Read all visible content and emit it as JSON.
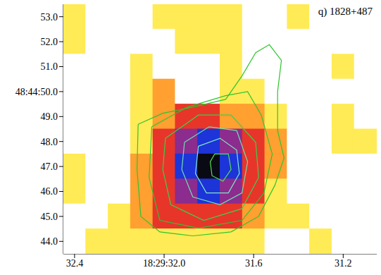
{
  "chart_data": {
    "type": "heatmap",
    "title": "q) 1828+487",
    "xlim": [
      32.45,
      31.05
    ],
    "xticks": [
      32.4,
      {
        "value": 32.0,
        "label": "18:29:32.0"
      },
      31.6,
      31.2
    ],
    "ylim": [
      43.5,
      53.5
    ],
    "yticks": [
      {
        "value": 44,
        "label": "44.0"
      },
      {
        "value": 45,
        "label": "45.0"
      },
      {
        "value": 46,
        "label": "46.0"
      },
      {
        "value": 47,
        "label": "47.0"
      },
      {
        "value": 48,
        "label": "48.0"
      },
      {
        "value": 49,
        "label": "49.0"
      },
      {
        "value": 50,
        "label": "48:44:50.0"
      },
      {
        "value": 51,
        "label": "51.0"
      },
      {
        "value": 52,
        "label": "52.0"
      },
      {
        "value": 53,
        "label": "53.0"
      }
    ],
    "cells": {
      "x": [
        32.4,
        32.3,
        32.2,
        32.1,
        32.0,
        31.9,
        31.8,
        31.7,
        31.6,
        31.5,
        31.4,
        31.3,
        31.2,
        31.1
      ],
      "y": [
        53,
        52,
        51,
        50,
        49,
        48,
        47,
        46,
        45,
        44
      ],
      "z": [
        [
          1,
          0,
          0,
          0,
          1,
          1,
          1,
          1,
          0,
          0,
          1,
          0,
          0,
          0
        ],
        [
          1,
          0,
          0,
          0,
          0,
          1,
          1,
          1,
          0,
          0,
          0,
          0,
          0,
          0
        ],
        [
          0,
          0,
          0,
          1,
          0,
          0,
          0,
          1,
          0,
          0,
          0,
          0,
          1,
          0
        ],
        [
          0,
          0,
          0,
          1,
          2,
          0,
          0,
          1,
          1,
          0,
          0,
          0,
          0,
          0
        ],
        [
          0,
          0,
          0,
          1,
          2,
          3,
          3,
          2,
          2,
          1,
          0,
          0,
          1,
          0
        ],
        [
          0,
          0,
          0,
          1,
          3,
          4,
          5,
          4,
          3,
          2,
          0,
          0,
          1,
          1
        ],
        [
          1,
          0,
          0,
          2,
          3,
          5,
          6,
          5,
          3,
          2,
          0,
          0,
          0,
          0
        ],
        [
          1,
          0,
          0,
          2,
          3,
          4,
          5,
          4,
          3,
          1,
          0,
          0,
          0,
          0
        ],
        [
          0,
          0,
          1,
          2,
          3,
          3,
          3,
          3,
          2,
          1,
          1,
          0,
          0,
          0
        ],
        [
          0,
          1,
          1,
          1,
          1,
          1,
          1,
          1,
          1,
          0,
          0,
          1,
          0,
          0
        ]
      ]
    },
    "color_range": [
      0,
      6
    ],
    "contours": [
      {
        "color": "#2fc42f",
        "x": [
          32.116,
          32.006,
          31.872,
          31.725,
          31.652,
          31.591,
          31.53,
          31.476,
          31.493,
          31.493,
          31.464,
          31.505,
          31.578,
          31.701,
          31.872,
          32.019,
          32.104,
          32.121
        ],
        "y": [
          48.69,
          49.13,
          49.38,
          49.69,
          50.63,
          51.56,
          51.88,
          51.25,
          50.0,
          48.44,
          47.34,
          46.25,
          45.0,
          44.38,
          44.22,
          44.38,
          45.0,
          46.88
        ]
      },
      {
        "color": "#2fc42f",
        "x": [
          32.055,
          31.896,
          31.725,
          31.627,
          31.566,
          31.517,
          31.554,
          31.652,
          31.847,
          32.019,
          32.067
        ],
        "y": [
          48.59,
          49.38,
          49.84,
          50.0,
          49.06,
          47.5,
          45.94,
          44.84,
          44.53,
          44.84,
          46.56
        ]
      },
      {
        "color": "#3ccf4a",
        "x": [
          31.994,
          31.847,
          31.701,
          31.591,
          31.578,
          31.652,
          31.823,
          31.97,
          32.006
        ],
        "y": [
          48.13,
          49.06,
          49.06,
          47.97,
          46.56,
          45.31,
          44.84,
          45.47,
          46.88
        ]
      },
      {
        "color": "#6fe0b0",
        "x": [
          31.909,
          31.799,
          31.676,
          31.627,
          31.652,
          31.75,
          31.872,
          31.921
        ],
        "y": [
          47.97,
          48.59,
          48.44,
          47.19,
          45.94,
          45.47,
          45.78,
          46.88
        ]
      },
      {
        "color": "#7fe8c8",
        "x": [
          31.847,
          31.75,
          31.676,
          31.664,
          31.713,
          31.811,
          31.86
        ],
        "y": [
          47.81,
          48.13,
          47.66,
          46.72,
          45.94,
          45.94,
          46.72
        ]
      },
      {
        "color": "#55dd55",
        "x": [
          31.774,
          31.713,
          31.701,
          31.737,
          31.786,
          31.794
        ],
        "y": [
          47.5,
          47.5,
          46.88,
          46.41,
          46.63,
          47.19
        ]
      }
    ]
  }
}
